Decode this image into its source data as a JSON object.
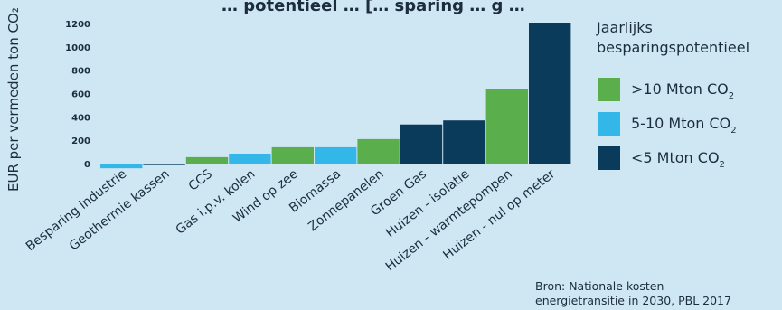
{
  "colors": {
    "background": "#cfe6f3",
    "green": "#5aae4b",
    "light_blue": "#33b6e8",
    "dark_navy": "#0b3b5a",
    "text": "#1c2d3d"
  },
  "chart_data": {
    "type": "bar",
    "title": "… potentieel … [… sparing … g …",
    "ylabel": "EUR per vermeden ton CO₂",
    "ylim": [
      -50,
      1250
    ],
    "yticks": [
      0,
      200,
      400,
      600,
      800,
      1000,
      1200
    ],
    "grid": false,
    "legend_placement": "right",
    "categories": [
      "Besparing industrie",
      "Geothermie kassen",
      "CCS",
      "Gas i.p.v. kolen",
      "Wind op zee",
      "Biomassa",
      "Zonnepanelen",
      "Groen Gas",
      "Huizen - isolatie",
      "Huizen - warmtepompen",
      "Huizen - nul op meter"
    ],
    "values": [
      -40,
      -13,
      55,
      85,
      140,
      140,
      210,
      335,
      370,
      640,
      1200
    ],
    "groups": [
      "5-10",
      "<5",
      ">10",
      "5-10",
      ">10",
      "5-10",
      ">10",
      "<5",
      "<5",
      ">10",
      "<5"
    ]
  },
  "legend": {
    "title_line1": "Jaarlijks",
    "title_line2": "besparingspotentieel",
    "items": [
      {
        "key": ">10",
        "label": ">10 Mton CO",
        "sub": "2",
        "color": "#5aae4b"
      },
      {
        "key": "5-10",
        "label": "5-10 Mton CO",
        "sub": "2",
        "color": "#33b6e8"
      },
      {
        "key": "<5",
        "label": "<5 Mton CO",
        "sub": "2",
        "color": "#0b3b5a"
      }
    ]
  },
  "source": {
    "line1": "Bron: Nationale kosten",
    "line2": "energietransitie in 2030, PBL 2017"
  }
}
